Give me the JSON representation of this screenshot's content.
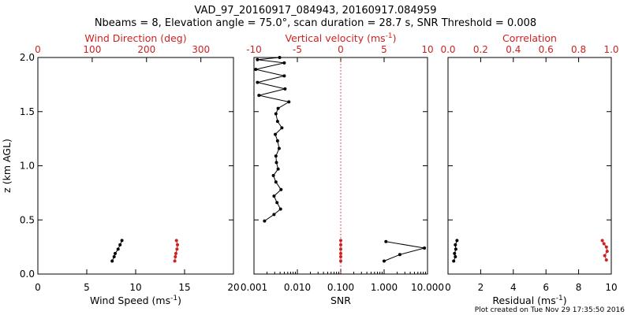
{
  "header": {
    "title_line1": "VAD_97_20160917_084943, 20160917.084959",
    "title_line2": "Nbeams = 8, Elevation angle = 75.0°, scan duration = 28.7 s, SNR Threshold = 0.008"
  },
  "footer": {
    "created": "Plot created on Tue Nov 29 17:35:50 2016"
  },
  "colors": {
    "red": "#cc2222",
    "black": "#000000"
  },
  "chart_data": [
    {
      "type": "scatter",
      "ylabel": "z (km AGL)",
      "ylim": [
        0,
        2
      ],
      "yticks": [
        "0.0",
        "0.5",
        "1.0",
        "1.5",
        "2.0"
      ],
      "bottom_axis": {
        "label": "Wind Speed (ms",
        "label_sup": "-1",
        "label_tail": ")",
        "lim": [
          0,
          20
        ],
        "ticks": [
          0,
          5,
          10,
          15,
          20
        ],
        "tick_labels": [
          "0",
          "5",
          "10",
          "15",
          "20"
        ]
      },
      "top_axis": {
        "label": "Wind Direction (deg)",
        "lim": [
          0,
          360
        ],
        "ticks": [
          0,
          100,
          200,
          300
        ],
        "tick_labels": [
          "0",
          "100",
          "200",
          "300"
        ]
      },
      "series": [
        {
          "axis": "bottom",
          "color": "black",
          "connected": true,
          "x": [
            8.6,
            8.4,
            8.2,
            7.9,
            7.8,
            7.6
          ],
          "y": [
            0.31,
            0.27,
            0.23,
            0.19,
            0.16,
            0.12
          ]
        },
        {
          "axis": "top",
          "color": "red",
          "connected": true,
          "x": [
            255,
            257,
            256,
            254,
            253,
            252
          ],
          "y": [
            0.31,
            0.27,
            0.23,
            0.19,
            0.16,
            0.12
          ]
        }
      ]
    },
    {
      "type": "line",
      "bottom_axis": {
        "label": "SNR",
        "scale": "log",
        "lim": [
          0.001,
          10
        ],
        "ticks": [
          0.001,
          0.01,
          0.1,
          1,
          10
        ],
        "tick_labels": [
          "0.001",
          "0.010",
          "0.100",
          "1.000",
          "10.000"
        ]
      },
      "top_axis": {
        "label": "Vertical velocity (ms",
        "label_sup": "-1",
        "label_tail": ")",
        "lim": [
          -10,
          10
        ],
        "ticks": [
          -10,
          -5,
          0,
          5,
          10
        ],
        "tick_labels": [
          "-10",
          "-5",
          "0",
          "5",
          "10"
        ]
      },
      "reference_line": {
        "axis": "top",
        "value": 0,
        "style": "dotted",
        "color": "red"
      },
      "series": [
        {
          "axis": "bottom",
          "color": "black",
          "connected": true,
          "x": [
            0.00175,
            0.0029,
            0.0041,
            0.0034,
            0.0029,
            0.0042,
            0.0032,
            0.0028,
            0.0036,
            0.0033,
            0.0032,
            0.0038,
            0.0035,
            0.0031,
            0.0044,
            0.0035,
            0.0032,
            0.0036,
            0.0064,
            0.0013,
            0.0052,
            0.0012,
            0.005,
            0.0011,
            0.005,
            0.0012,
            0.0039
          ],
          "y": [
            0.49,
            0.55,
            0.6,
            0.66,
            0.72,
            0.78,
            0.85,
            0.91,
            0.97,
            1.03,
            1.09,
            1.16,
            1.23,
            1.29,
            1.35,
            1.41,
            1.48,
            1.53,
            1.59,
            1.65,
            1.71,
            1.77,
            1.83,
            1.89,
            1.95,
            1.98,
            2.0
          ]
        },
        {
          "axis": "bottom",
          "color": "black",
          "connected": true,
          "x": [
            1.0,
            2.3,
            8.5,
            1.1
          ],
          "y": [
            0.12,
            0.18,
            0.24,
            0.3
          ]
        },
        {
          "axis": "top",
          "color": "red",
          "connected": true,
          "x": [
            0,
            0,
            0,
            0,
            0,
            0
          ],
          "y": [
            0.31,
            0.27,
            0.23,
            0.19,
            0.16,
            0.12
          ]
        }
      ]
    },
    {
      "type": "scatter",
      "bottom_axis": {
        "label": "Residual (ms",
        "label_sup": "-1",
        "label_tail": ")",
        "lim": [
          0,
          10
        ],
        "ticks": [
          0,
          2,
          4,
          6,
          8,
          10
        ],
        "tick_labels": [
          "0",
          "2",
          "4",
          "6",
          "8",
          "10"
        ]
      },
      "top_axis": {
        "label": "Correlation",
        "lim": [
          0,
          1
        ],
        "ticks": [
          0,
          0.2,
          0.4,
          0.6,
          0.8,
          1.0
        ],
        "tick_labels": [
          "0.0",
          "0.2",
          "0.4",
          "0.6",
          "0.8",
          "1.0"
        ]
      },
      "series": [
        {
          "axis": "bottom",
          "color": "black",
          "connected": true,
          "x": [
            0.55,
            0.45,
            0.48,
            0.4,
            0.45,
            0.35
          ],
          "y": [
            0.31,
            0.27,
            0.23,
            0.19,
            0.16,
            0.12
          ]
        },
        {
          "axis": "top",
          "color": "red",
          "connected": true,
          "x": [
            0.945,
            0.955,
            0.97,
            0.975,
            0.96,
            0.97
          ],
          "y": [
            0.31,
            0.28,
            0.25,
            0.21,
            0.17,
            0.13
          ]
        }
      ]
    }
  ]
}
